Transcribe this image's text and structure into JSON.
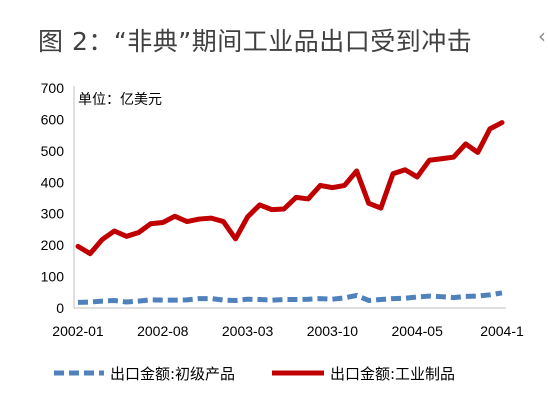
{
  "figure": {
    "title": "图 2：“非典”期间工业品出口受到冲击",
    "edge_mark": "‹"
  },
  "chart_data": {
    "type": "line",
    "unit_label": "单位：亿美元",
    "ylim": [
      0,
      700
    ],
    "yticks": [
      0,
      100,
      200,
      300,
      400,
      500,
      600,
      700
    ],
    "x": [
      "2002-01",
      "2002-02",
      "2002-03",
      "2002-04",
      "2002-05",
      "2002-06",
      "2002-07",
      "2002-08",
      "2002-09",
      "2002-10",
      "2002-11",
      "2002-12",
      "2003-01",
      "2003-02",
      "2003-03",
      "2003-04",
      "2003-05",
      "2003-06",
      "2003-07",
      "2003-08",
      "2003-09",
      "2003-10",
      "2003-11",
      "2003-12",
      "2004-01",
      "2004-02",
      "2004-03",
      "2004-04",
      "2004-05",
      "2004-06",
      "2004-07",
      "2004-08",
      "2004-09",
      "2004-10",
      "2004-11",
      "2004-12"
    ],
    "xtick_labels": [
      "2002-01",
      "2002-08",
      "2003-03",
      "2003-10",
      "2004-05",
      "2004-1"
    ],
    "xtick_index": [
      0,
      7,
      14,
      21,
      28,
      35
    ],
    "series": [
      {
        "name": "出口金额:初级产品",
        "color": "#4f81bd",
        "style": "dashed",
        "values": [
          18,
          19,
          22,
          24,
          19,
          22,
          26,
          25,
          25,
          26,
          30,
          30,
          25,
          24,
          28,
          27,
          25,
          27,
          27,
          28,
          30,
          28,
          32,
          40,
          24,
          27,
          30,
          31,
          35,
          38,
          36,
          33,
          37,
          38,
          42,
          48
        ]
      },
      {
        "name": "出口金额:工业制品",
        "color": "#c00000",
        "style": "solid",
        "values": [
          196,
          173,
          218,
          245,
          228,
          240,
          268,
          272,
          292,
          275,
          283,
          286,
          275,
          220,
          290,
          328,
          313,
          315,
          352,
          347,
          390,
          383,
          390,
          436,
          333,
          318,
          427,
          440,
          417,
          470,
          475,
          480,
          522,
          495,
          570,
          590
        ]
      }
    ],
    "legend_position": "bottom"
  }
}
